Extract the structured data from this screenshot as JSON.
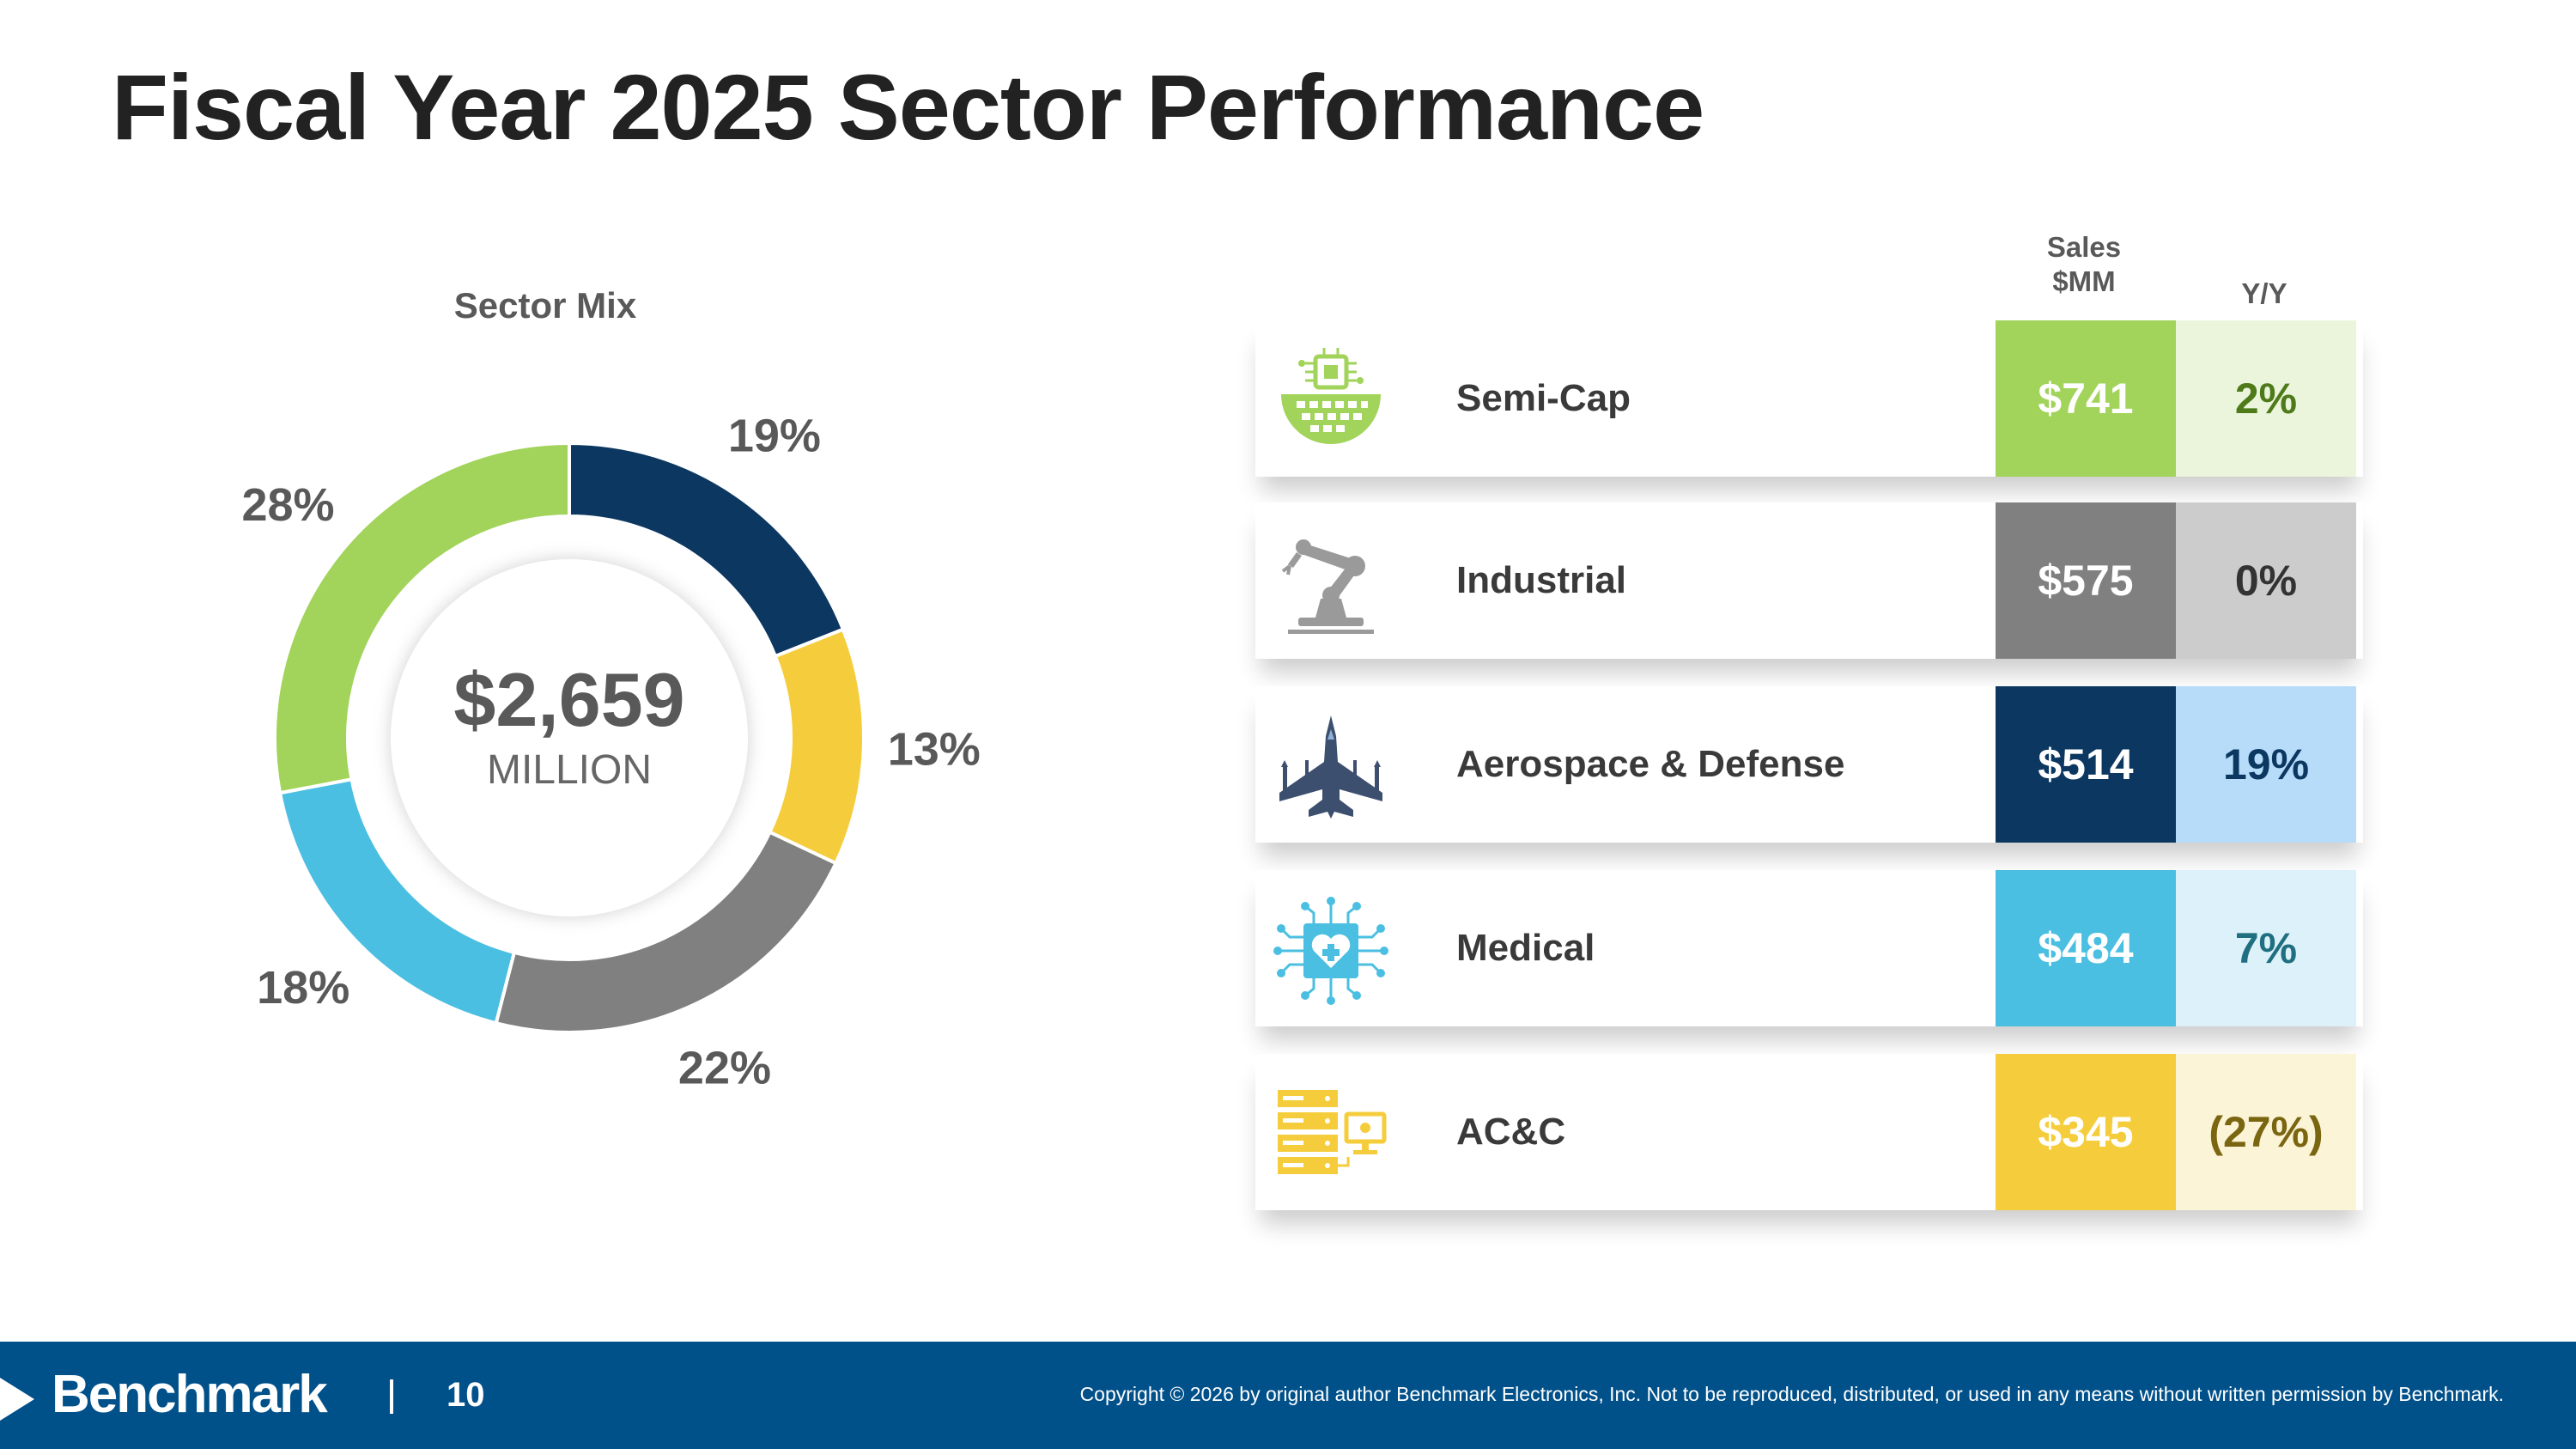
{
  "title": "Fiscal Year 2025 Sector Performance",
  "chart_data": {
    "type": "pie",
    "title": "Sector Mix",
    "center_total": "$2,659",
    "center_unit": "MILLION",
    "categories": [
      "Semi-Cap",
      "Aerospace & Defense",
      "AC&C",
      "Industrial",
      "Medical"
    ],
    "values": [
      28,
      19,
      13,
      22,
      18
    ],
    "labels": [
      "28%",
      "19%",
      "13%",
      "22%",
      "18%"
    ],
    "colors": [
      "#a2d35a",
      "#0b3761",
      "#f5cd3c",
      "#808080",
      "#4bbfe2"
    ],
    "start_category": "Aerospace & Defense"
  },
  "table": {
    "header_sales": "Sales $MM",
    "header_sales_line1": "Sales",
    "header_sales_line2": "$MM",
    "header_yoy": "Y/Y",
    "rows": [
      {
        "name": "Semi-Cap",
        "sales": "$741",
        "yoy": "2%",
        "sales_color": "#a2d35a",
        "yoy_bg": "#eaf5dc",
        "yoy_color": "#4e7a1a",
        "icon": "chip-globe-icon"
      },
      {
        "name": "Industrial",
        "sales": "$575",
        "yoy": "0%",
        "sales_color": "#808080",
        "yoy_bg": "#cccccc",
        "yoy_color": "#333333",
        "icon": "robot-arm-icon"
      },
      {
        "name": "Aerospace & Defense",
        "sales": "$514",
        "yoy": "19%",
        "sales_color": "#0b3761",
        "yoy_bg": "#b7dcfa",
        "yoy_color": "#0b3761",
        "icon": "fighter-jet-icon"
      },
      {
        "name": "Medical",
        "sales": "$484",
        "yoy": "7%",
        "sales_color": "#4bbfe2",
        "yoy_bg": "#dcf1f9",
        "yoy_color": "#1f6f80",
        "icon": "medical-chip-icon"
      },
      {
        "name": "AC&C",
        "sales": "$345",
        "yoy": "(27%)",
        "sales_color": "#f5cd3c",
        "yoy_bg": "#fcf4d6",
        "yoy_color": "#7a6511",
        "icon": "server-monitor-icon"
      }
    ]
  },
  "footer": {
    "logo": "Benchmark",
    "page_number": "10",
    "copyright": "Copyright © 2026 by original author Benchmark Electronics, Inc. Not to be reproduced, distributed, or used in any means without written permission by Benchmark.",
    "bg_color": "#00508a"
  }
}
